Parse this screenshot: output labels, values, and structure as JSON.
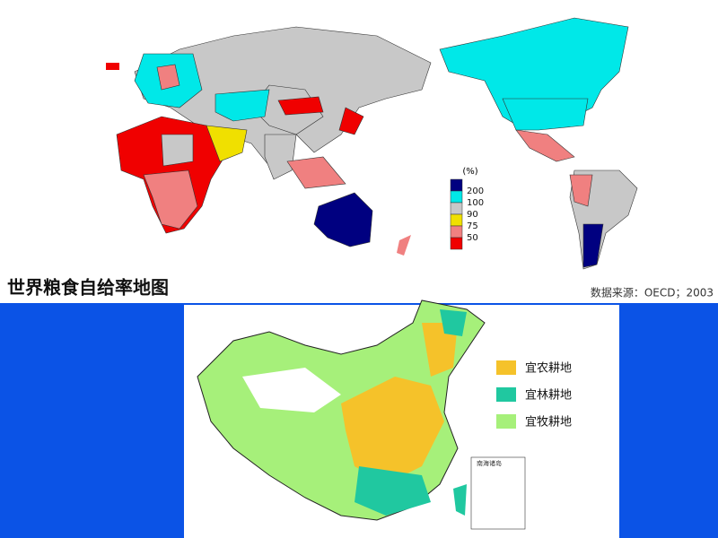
{
  "top_map": {
    "title": "世界粮食自给率地图",
    "source": "数据来源：OECD；2003",
    "legend": {
      "unit": "(%)",
      "labels": [
        "200",
        "100",
        "90",
        "75",
        "50"
      ]
    }
  },
  "bottom_map": {
    "inset_label": "南海诸岛",
    "legend": [
      "宜农耕地",
      "宜林耕地",
      "宜牧耕地"
    ]
  }
}
